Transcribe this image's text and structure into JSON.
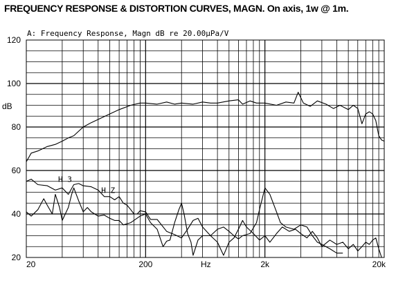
{
  "title": "FREQUENCY RESPONSE & DISTORTION CURVES, MAGN. On axis, 1w @ 1m.",
  "chart_data": {
    "type": "line",
    "subtitle": "A: Frequency Response, Magn dB re 20.00µPa/V",
    "xscale": "log",
    "xlim": [
      20,
      20000
    ],
    "ylim": [
      20,
      120
    ],
    "grid": true,
    "xlabel": "Hz",
    "ylabel": "dB",
    "x_ticks": [
      "20",
      "200",
      "2k",
      "20k"
    ],
    "y_ticks": [
      "120",
      "100",
      "80",
      "60",
      "40",
      "20"
    ],
    "series": [
      {
        "name": "",
        "points": [
          [
            20,
            64
          ],
          [
            22,
            68
          ],
          [
            25,
            69
          ],
          [
            30,
            71
          ],
          [
            35,
            72
          ],
          [
            40,
            73.5
          ],
          [
            45,
            75
          ],
          [
            50,
            76
          ],
          [
            60,
            80
          ],
          [
            70,
            82
          ],
          [
            80,
            83.5
          ],
          [
            100,
            86
          ],
          [
            120,
            88
          ],
          [
            150,
            90
          ],
          [
            180,
            91
          ],
          [
            200,
            91
          ],
          [
            250,
            90.5
          ],
          [
            300,
            91.5
          ],
          [
            350,
            90.5
          ],
          [
            400,
            91
          ],
          [
            500,
            90.5
          ],
          [
            600,
            91.5
          ],
          [
            700,
            91
          ],
          [
            800,
            91
          ],
          [
            1000,
            92
          ],
          [
            1200,
            92.5
          ],
          [
            1300,
            90.5
          ],
          [
            1500,
            92
          ],
          [
            1700,
            91
          ],
          [
            2000,
            91
          ],
          [
            2500,
            90
          ],
          [
            3000,
            91.5
          ],
          [
            3500,
            91
          ],
          [
            3800,
            96
          ],
          [
            4200,
            91
          ],
          [
            4800,
            89.5
          ],
          [
            5500,
            92
          ],
          [
            6500,
            90.5
          ],
          [
            7500,
            88.5
          ],
          [
            8500,
            90
          ],
          [
            10000,
            88
          ],
          [
            11000,
            90
          ],
          [
            12000,
            88.5
          ],
          [
            13000,
            81.5
          ],
          [
            14000,
            86
          ],
          [
            15000,
            87
          ],
          [
            16000,
            86
          ],
          [
            17000,
            83
          ],
          [
            18000,
            76
          ],
          [
            19000,
            74
          ],
          [
            20000,
            73.5
          ]
        ]
      },
      {
        "name": "H3",
        "points": [
          [
            20,
            55
          ],
          [
            22,
            56
          ],
          [
            25,
            53.5
          ],
          [
            30,
            53
          ],
          [
            35,
            51
          ],
          [
            40,
            52
          ],
          [
            45,
            49
          ],
          [
            50,
            53.5
          ],
          [
            55,
            54
          ],
          [
            60,
            53
          ],
          [
            70,
            52.5
          ],
          [
            80,
            51
          ],
          [
            90,
            48
          ],
          [
            100,
            48
          ],
          [
            110,
            46.5
          ],
          [
            120,
            48
          ],
          [
            130,
            45
          ],
          [
            140,
            44
          ],
          [
            150,
            42
          ],
          [
            160,
            40
          ],
          [
            170,
            40
          ],
          [
            180,
            41.5
          ],
          [
            200,
            41
          ],
          [
            220,
            37.5
          ],
          [
            250,
            37.5
          ],
          [
            300,
            32
          ],
          [
            350,
            30.5
          ],
          [
            400,
            29
          ],
          [
            450,
            33
          ],
          [
            500,
            37
          ],
          [
            550,
            38
          ],
          [
            600,
            34
          ],
          [
            700,
            30
          ],
          [
            800,
            33
          ],
          [
            900,
            34
          ],
          [
            1000,
            32
          ],
          [
            1100,
            30
          ],
          [
            1200,
            28.5
          ],
          [
            1300,
            30
          ],
          [
            1500,
            31
          ],
          [
            1700,
            36
          ],
          [
            1800,
            42
          ],
          [
            2000,
            52
          ],
          [
            2200,
            49
          ],
          [
            2500,
            41
          ],
          [
            2700,
            36
          ],
          [
            3000,
            34
          ],
          [
            3500,
            33
          ],
          [
            4000,
            35
          ],
          [
            4500,
            34
          ],
          [
            5000,
            30
          ],
          [
            5500,
            27
          ],
          [
            6000,
            26
          ],
          [
            7000,
            24
          ],
          [
            8000,
            22
          ],
          [
            9000,
            22
          ]
        ]
      },
      {
        "name": "H2",
        "points": [
          [
            20,
            41
          ],
          [
            22,
            39
          ],
          [
            25,
            42
          ],
          [
            28,
            47
          ],
          [
            30,
            44
          ],
          [
            33,
            40
          ],
          [
            35,
            49
          ],
          [
            38,
            43
          ],
          [
            40,
            37
          ],
          [
            45,
            43
          ],
          [
            48,
            49
          ],
          [
            50,
            52
          ],
          [
            55,
            46
          ],
          [
            60,
            41
          ],
          [
            65,
            43
          ],
          [
            70,
            41
          ],
          [
            80,
            39
          ],
          [
            90,
            39.5
          ],
          [
            100,
            38
          ],
          [
            110,
            37
          ],
          [
            120,
            37
          ],
          [
            130,
            35
          ],
          [
            150,
            36
          ],
          [
            180,
            39
          ],
          [
            200,
            40
          ],
          [
            220,
            36
          ],
          [
            250,
            33
          ],
          [
            280,
            25
          ],
          [
            300,
            27.5
          ],
          [
            320,
            28
          ],
          [
            350,
            36
          ],
          [
            380,
            42
          ],
          [
            400,
            45
          ],
          [
            420,
            40
          ],
          [
            450,
            31
          ],
          [
            480,
            27
          ],
          [
            500,
            21
          ],
          [
            550,
            28
          ],
          [
            600,
            30
          ],
          [
            700,
            30
          ],
          [
            800,
            27
          ],
          [
            900,
            21
          ],
          [
            1000,
            27
          ],
          [
            1100,
            29
          ],
          [
            1200,
            33
          ],
          [
            1300,
            37
          ],
          [
            1400,
            34
          ],
          [
            1600,
            31
          ],
          [
            1800,
            28
          ],
          [
            2000,
            30
          ],
          [
            2200,
            27
          ],
          [
            2500,
            31
          ],
          [
            2800,
            34
          ],
          [
            3200,
            32
          ],
          [
            3600,
            33
          ],
          [
            4000,
            31
          ],
          [
            4500,
            29
          ],
          [
            5000,
            32
          ],
          [
            5500,
            29
          ],
          [
            6000,
            25
          ],
          [
            7000,
            28
          ],
          [
            8000,
            26
          ],
          [
            9000,
            27
          ],
          [
            10000,
            24
          ],
          [
            11000,
            26
          ],
          [
            12000,
            23
          ],
          [
            13000,
            25
          ],
          [
            14000,
            27
          ],
          [
            15000,
            26
          ],
          [
            16000,
            28
          ],
          [
            17000,
            29
          ],
          [
            18000,
            24
          ],
          [
            19000,
            20
          ]
        ]
      }
    ],
    "annotations": [
      {
        "text": "H 3",
        "at": [
          37,
          56
        ]
      },
      {
        "text": "H Z",
        "at": [
          85,
          51
        ]
      }
    ]
  }
}
